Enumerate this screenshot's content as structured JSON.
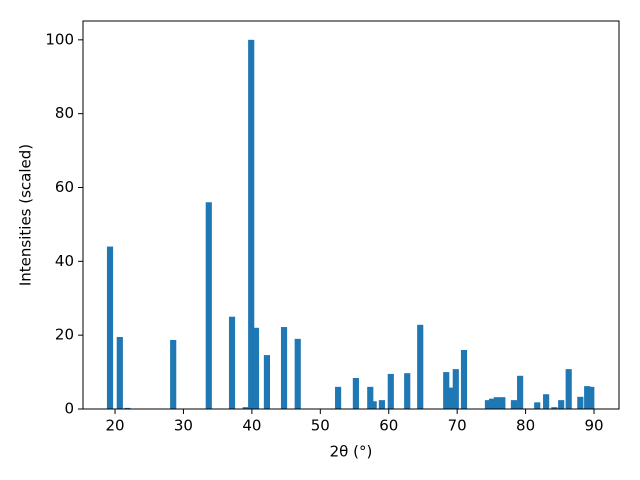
{
  "chart_data": {
    "type": "bar",
    "x_label": "2θ (°)",
    "y_label": "Intensities (scaled)",
    "color": "#1f77b4",
    "x": [
      19.27,
      20.7,
      21.8,
      28.5,
      33.7,
      37.1,
      39.1,
      39.9,
      40.6,
      42.2,
      44.7,
      46.7,
      52.6,
      55.2,
      57.3,
      57.8,
      59.0,
      60.3,
      62.7,
      64.6,
      68.4,
      69.1,
      69.8,
      71.0,
      74.5,
      75.1,
      75.8,
      76.6,
      78.3,
      79.2,
      81.7,
      83.0,
      84.2,
      85.2,
      86.3,
      88.0,
      89.0,
      89.6
    ],
    "values": [
      44,
      19.5,
      0.3,
      18.7,
      56,
      25,
      0.5,
      100,
      22,
      14.6,
      22.2,
      19,
      6,
      8.4,
      6,
      2.1,
      2.4,
      9.5,
      9.7,
      22.8,
      10,
      5.8,
      10.8,
      16,
      2.4,
      2.8,
      3.2,
      3.2,
      2.4,
      9,
      1.8,
      4,
      0.5,
      2.4,
      10.8,
      3.3,
      6.2,
      6
    ],
    "xlim": [
      15.32,
      93.65
    ],
    "ylim": [
      0,
      105.1
    ],
    "xticks": [
      20,
      30,
      40,
      50,
      60,
      70,
      80,
      90
    ],
    "yticks": [
      0,
      20,
      40,
      60,
      80,
      100
    ]
  }
}
